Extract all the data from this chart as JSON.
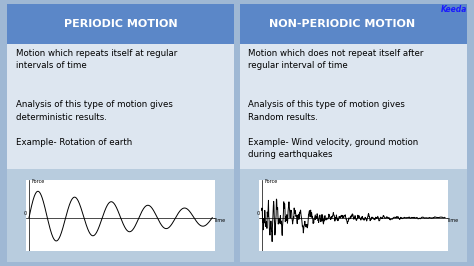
{
  "title_left": "PERIODIC MOTION",
  "title_right": "NON-PERIODIC MOTION",
  "header_bg": "#5b87c8",
  "header_text_color": "white",
  "row1_left": "Motion which repeats itself at regular\nintervals of time",
  "row1_right": "Motion which does not repeat itself after\nregular interval of time",
  "row2_left": "Analysis of this type of motion gives\ndeterministic results.\n\nExample- Rotation of earth",
  "row2_right": "Analysis of this type of motion gives\nRandom results.\n\nExample- Wind velocity, ground motion\nduring earthquakes",
  "cell_bg_light": "#dde6f0",
  "cell_bg_dark": "#c8d8ea",
  "graph_bg": "#b8ccde",
  "fig_bg": "#9fb8d4",
  "font_size_header": 8,
  "font_size_cell": 6.2,
  "font_size_axis_label": 4.0
}
